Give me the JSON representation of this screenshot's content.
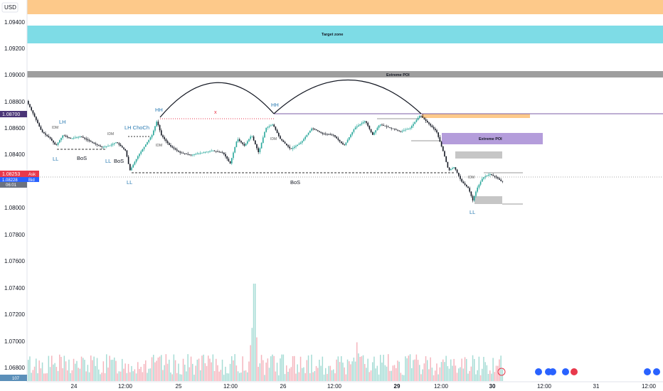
{
  "currency": "USD",
  "price_axis": [
    "1.09400",
    "1.09200",
    "1.09000",
    "1.08800",
    "1.08600",
    "1.08400",
    "1.08200",
    "1.08000",
    "1.07800",
    "1.07600",
    "1.07400",
    "1.07200",
    "1.07000",
    "1.06800"
  ],
  "time_axis": [
    "24",
    "12:00",
    "25",
    "12:00",
    "26",
    "12:00",
    "29",
    "12:00",
    "30",
    "12:00",
    "31",
    "12:00"
  ],
  "price_tags": {
    "purple": "1.08700",
    "ask": "1.08253",
    "ask_label": "Ask",
    "bid": "1.08228",
    "bid_label": "Bid",
    "countdown": "06:01",
    "volume": "107"
  },
  "zones": {
    "target": "Target zone",
    "extreme_upper": "Extreme POI",
    "extreme_right": "Extreme POI"
  },
  "markers": {
    "ll1": "LL",
    "lh1": "LH",
    "idm1": "IDM",
    "bos1": "BoS",
    "idm2": "IDM",
    "ll2": "LL",
    "bos2": "BoS",
    "lh_choch": "LH ChoCh",
    "ll3": "LL",
    "hh1": "HH",
    "idm3": "IDM",
    "x": "x",
    "hh2": "HH",
    "idm4": "IDM",
    "bos3": "BoS",
    "idm5": "IDM",
    "ll4": "LL"
  },
  "colors": {
    "orange_zone": "#fdc98a",
    "cyan_zone": "#7edce6",
    "grey_zone": "#9e9e9e",
    "purple_zone": "#b49ddb",
    "purple_tag": "#4a3577",
    "ask_red": "#e8394c",
    "bid_blue": "#2962ff",
    "up_candle": "#26a69a",
    "down_candle": "#131722",
    "marker_blue": "#2a7bb3"
  }
}
